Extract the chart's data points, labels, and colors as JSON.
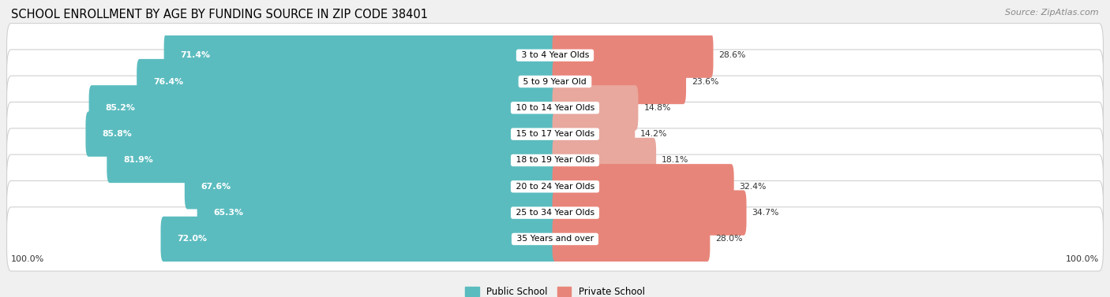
{
  "title": "SCHOOL ENROLLMENT BY AGE BY FUNDING SOURCE IN ZIP CODE 38401",
  "source": "Source: ZipAtlas.com",
  "categories": [
    "3 to 4 Year Olds",
    "5 to 9 Year Old",
    "10 to 14 Year Olds",
    "15 to 17 Year Olds",
    "18 to 19 Year Olds",
    "20 to 24 Year Olds",
    "25 to 34 Year Olds",
    "35 Years and over"
  ],
  "public_values": [
    71.4,
    76.4,
    85.2,
    85.8,
    81.9,
    67.6,
    65.3,
    72.0
  ],
  "private_values": [
    28.6,
    23.6,
    14.8,
    14.2,
    18.1,
    32.4,
    34.7,
    28.0
  ],
  "public_color": "#5bbcbf",
  "private_colors": [
    "#e8857a",
    "#e8857a",
    "#e8a89e",
    "#e8a89e",
    "#e8a89e",
    "#e8857a",
    "#e8857a",
    "#e8857a"
  ],
  "background_color": "#f0f0f0",
  "row_bg_color": "#ffffff",
  "title_fontsize": 10.5,
  "source_fontsize": 8,
  "bar_height": 0.72,
  "xlim_left": -100,
  "xlim_right": 100
}
